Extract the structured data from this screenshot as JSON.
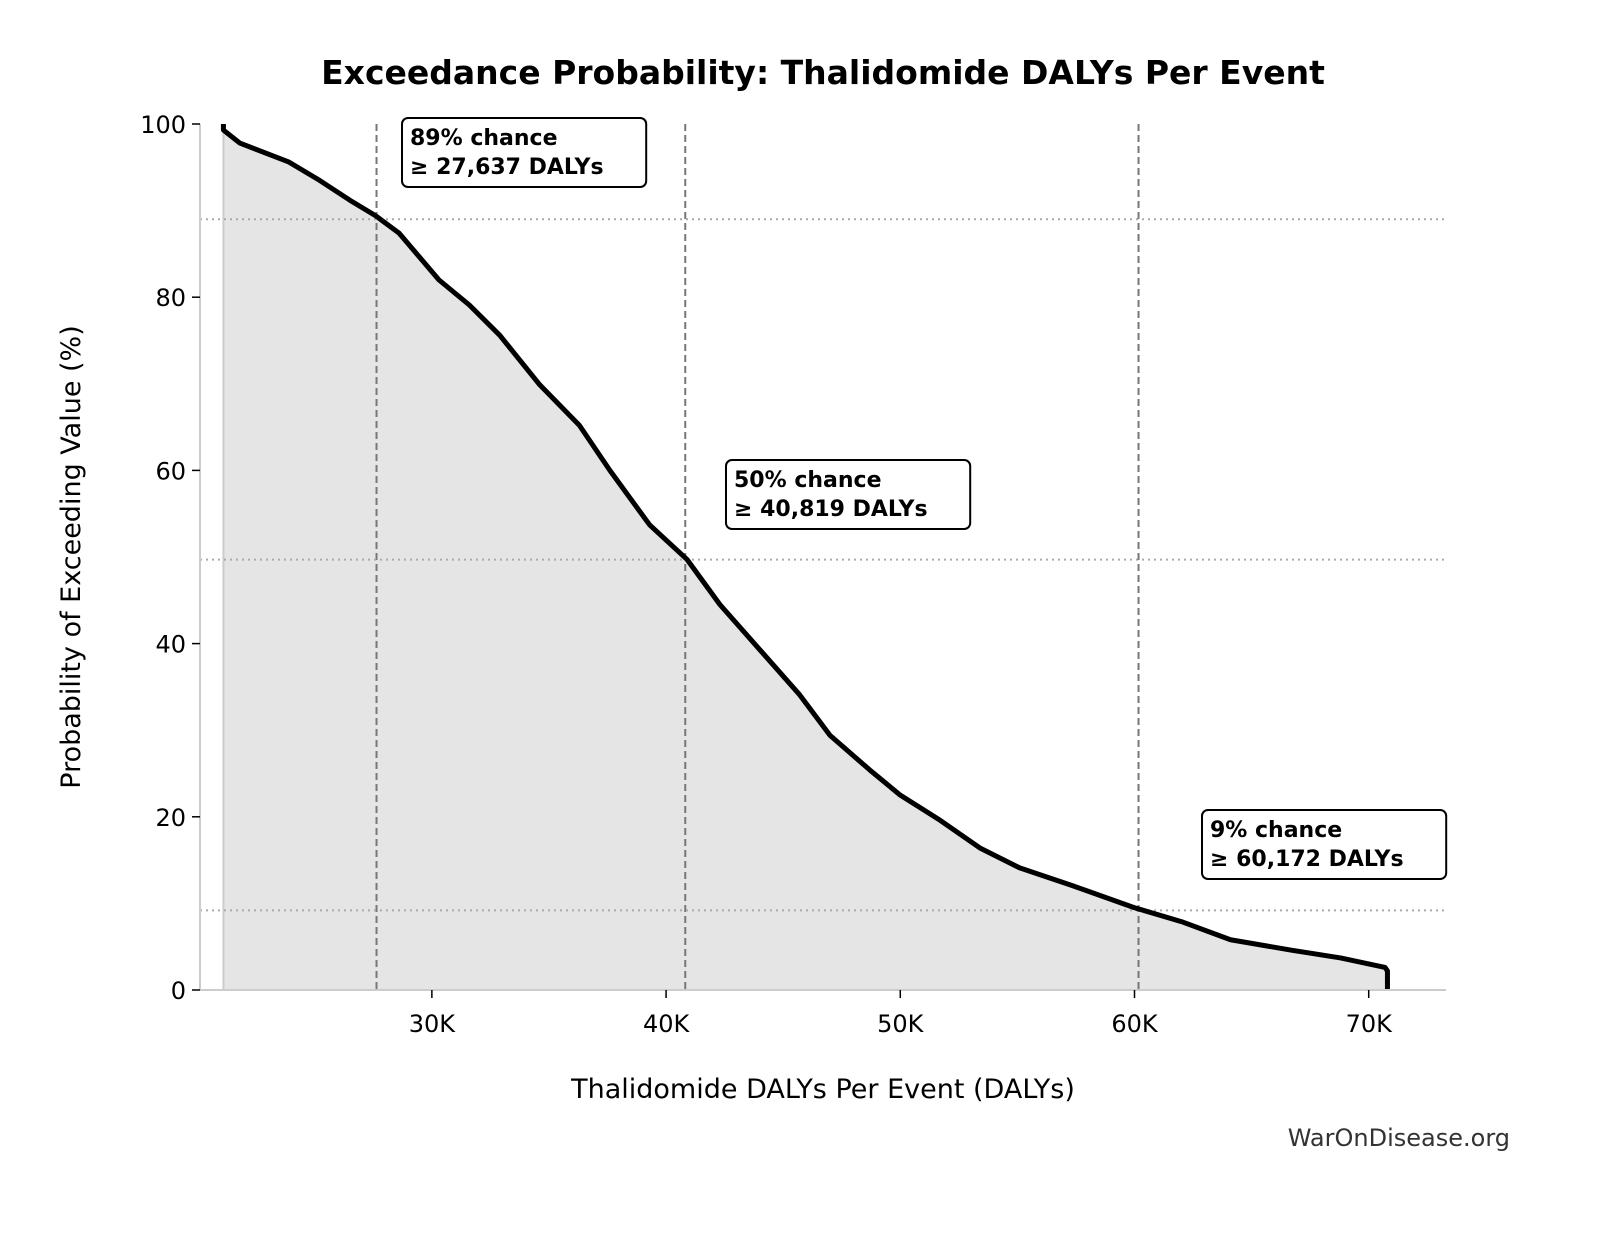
{
  "chart_data": {
    "type": "area",
    "title": "Exceedance Probability: Thalidomide DALYs Per Event",
    "xlabel": "Thalidomide DALYs Per Event (DALYs)",
    "ylabel": "Probability of Exceeding Value (%)",
    "xlim": [
      20100,
      73300
    ],
    "ylim": [
      0,
      100
    ],
    "xticks": [
      30000,
      40000,
      50000,
      60000,
      70000
    ],
    "xtick_labels": [
      "30K",
      "40K",
      "50K",
      "60K",
      "70K"
    ],
    "yticks": [
      0,
      20,
      40,
      60,
      80,
      100
    ],
    "ytick_labels": [
      "0",
      "20",
      "40",
      "60",
      "80",
      "100"
    ],
    "grid": false,
    "line_color": "#000000",
    "fill_color": "#e5e5e5",
    "x": [
      21100,
      21100,
      21800,
      23900,
      25200,
      26500,
      27600,
      28600,
      30300,
      31600,
      32900,
      34600,
      36300,
      37600,
      39300,
      40900,
      42300,
      44000,
      45700,
      47000,
      48700,
      50000,
      51700,
      53400,
      55100,
      57300,
      60000,
      62000,
      64100,
      66700,
      68800,
      70700,
      70800,
      70800
    ],
    "y": [
      100,
      99.3,
      97.8,
      95.6,
      93.5,
      91.2,
      89.4,
      87.4,
      82.0,
      79.1,
      75.6,
      69.9,
      65.2,
      60.0,
      53.7,
      49.7,
      44.5,
      39.3,
      34.1,
      29.4,
      25.4,
      22.5,
      19.6,
      16.4,
      14.1,
      12.1,
      9.5,
      7.9,
      5.8,
      4.6,
      3.7,
      2.6,
      2.2,
      0
    ],
    "annotations": [
      {
        "line1": "89% chance",
        "line2": "≥ 27,637 DALYs",
        "x": 27637,
        "y": 89
      },
      {
        "line1": "50% chance",
        "line2": "≥ 40,819 DALYs",
        "x": 40819,
        "y": 49.7
      },
      {
        "line1": "9% chance",
        "line2": "≥ 60,172 DALYs",
        "x": 60172,
        "y": 9.2
      }
    ]
  },
  "watermark": "WarOnDisease.org"
}
